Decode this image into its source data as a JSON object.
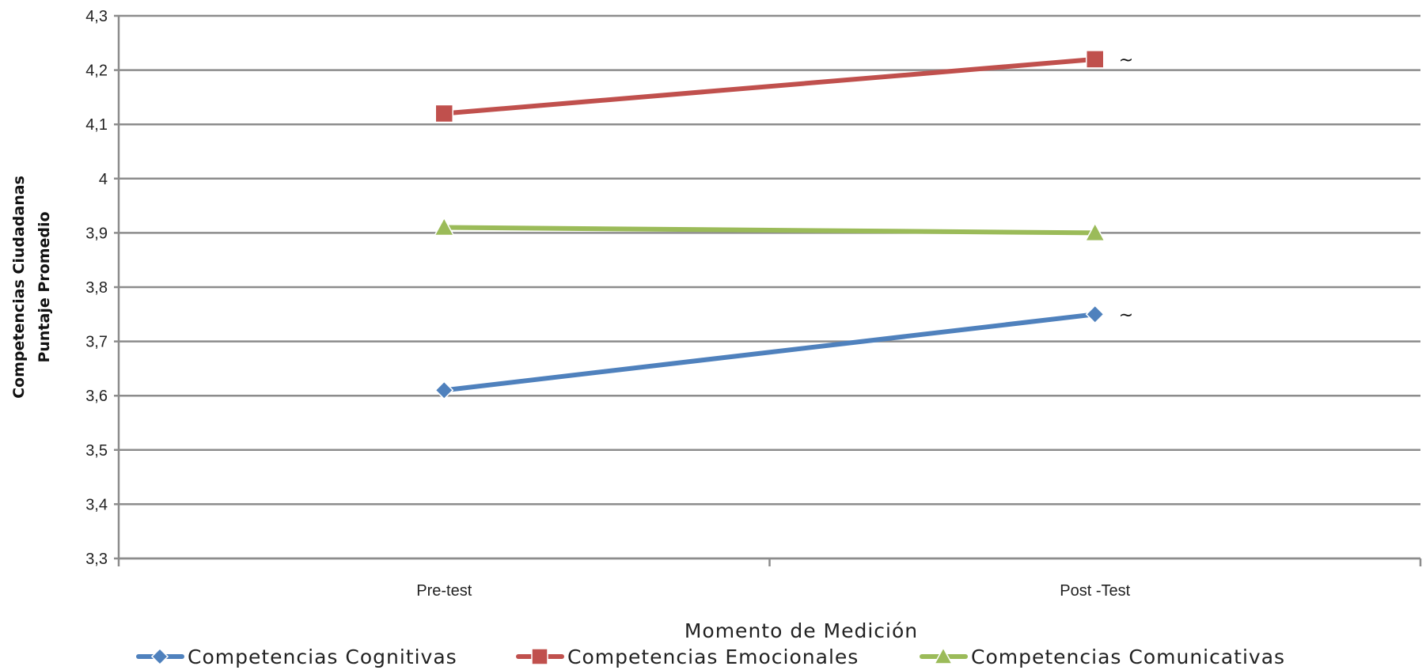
{
  "chart_data": {
    "type": "line",
    "title": "",
    "xlabel": "Momento de Medición",
    "ylabel_lines": [
      "Competencias Ciudadanas",
      "Puntaje Promedio"
    ],
    "categories": [
      "Pre-test",
      "Post -Test"
    ],
    "ylim": [
      3.3,
      4.3
    ],
    "yticks": [
      "3,3",
      "3,4",
      "3,5",
      "3,6",
      "3,7",
      "3,8",
      "3,9",
      "4",
      "4,1",
      "4,2",
      "4,3"
    ],
    "grid": true,
    "legend_position": "bottom",
    "series": [
      {
        "name": "Competencias Cognitivas",
        "values": [
          3.61,
          3.75
        ],
        "color": "#4f81bd",
        "marker": "diamond",
        "annotation": "~"
      },
      {
        "name": "Competencias Emocionales",
        "values": [
          4.12,
          4.22
        ],
        "color": "#c0504d",
        "marker": "square",
        "annotation": "~"
      },
      {
        "name": "Competencias Comunicativas",
        "values": [
          3.91,
          3.9
        ],
        "color": "#9bbb59",
        "marker": "triangle",
        "annotation": ""
      }
    ]
  }
}
